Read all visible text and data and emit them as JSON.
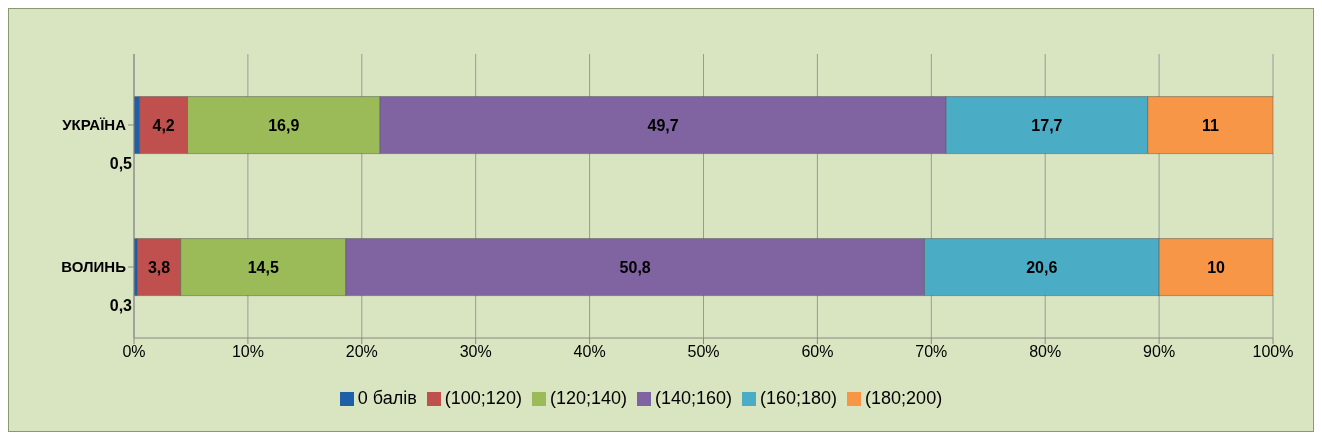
{
  "chart_data": {
    "type": "bar",
    "orientation": "horizontal",
    "stacked": true,
    "categories": [
      "УКРАЇНА",
      "ВОЛИНЬ"
    ],
    "series": [
      {
        "name": "0 балів",
        "color": "#1f5fa8",
        "values": [
          0.5,
          0.3
        ],
        "value_labels": [
          "0,5",
          "0,3"
        ]
      },
      {
        "name": "(100;120)",
        "color": "#c0504d",
        "values": [
          4.2,
          3.8
        ],
        "value_labels": [
          "4,2",
          "3,8"
        ]
      },
      {
        "name": "(120;140)",
        "color": "#9bbb59",
        "values": [
          16.9,
          14.5
        ],
        "value_labels": [
          "16,9",
          "14,5"
        ]
      },
      {
        "name": "(140;160)",
        "color": "#8064a2",
        "values": [
          49.7,
          50.8
        ],
        "value_labels": [
          "49,7",
          "50,8"
        ]
      },
      {
        "name": "(160;180)",
        "color": "#4bacc6",
        "values": [
          17.7,
          20.6
        ],
        "value_labels": [
          "17,7",
          "20,6"
        ]
      },
      {
        "name": "(180;200)",
        "color": "#f79646",
        "values": [
          11,
          10
        ],
        "value_labels": [
          "11",
          "10"
        ]
      }
    ],
    "xlim": [
      0,
      100
    ],
    "xticks": [
      {
        "value": 0,
        "label": "0%"
      },
      {
        "value": 10,
        "label": "10%"
      },
      {
        "value": 20,
        "label": "20%"
      },
      {
        "value": 30,
        "label": "30%"
      },
      {
        "value": 40,
        "label": "40%"
      },
      {
        "value": 50,
        "label": "50%"
      },
      {
        "value": 60,
        "label": "60%"
      },
      {
        "value": 70,
        "label": "70%"
      },
      {
        "value": 80,
        "label": "80%"
      },
      {
        "value": 90,
        "label": "90%"
      },
      {
        "value": 100,
        "label": "100%"
      }
    ],
    "grid": "x",
    "legend": "bottom"
  }
}
